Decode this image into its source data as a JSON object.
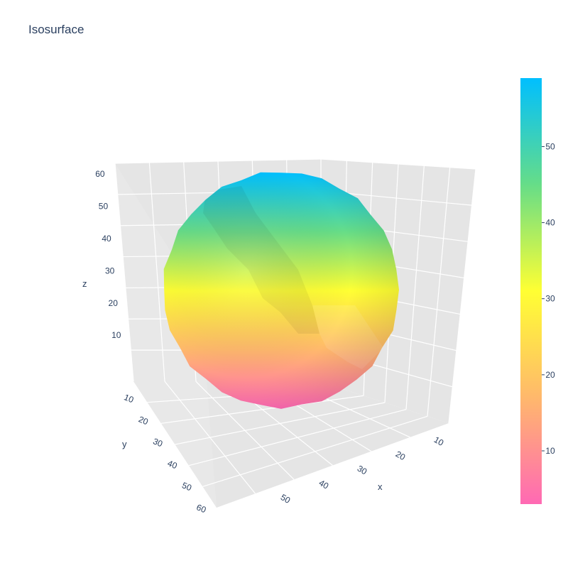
{
  "chart_data": {
    "type": "isosurface",
    "title": "Isosurface",
    "axes": {
      "x": {
        "label": "x",
        "ticks": [
          10,
          20,
          30,
          40,
          50
        ]
      },
      "y": {
        "label": "y",
        "ticks": [
          10,
          20,
          30,
          40,
          50,
          60
        ]
      },
      "z": {
        "label": "z",
        "ticks": [
          10,
          20,
          30,
          40,
          50,
          60
        ]
      }
    },
    "surface": {
      "shape": "sphere",
      "value_range": [
        3,
        59
      ]
    },
    "colorbar": {
      "range": [
        3,
        59
      ],
      "ticks": [
        10,
        20,
        30,
        40,
        50
      ],
      "colorscale": [
        [
          0.0,
          "#ff69b4"
        ],
        [
          0.25,
          "#ffb86c"
        ],
        [
          0.5,
          "#ffff33"
        ],
        [
          0.75,
          "#66dd88"
        ],
        [
          1.0,
          "#00bfff"
        ]
      ]
    },
    "scene": {
      "background": "#e5e5e5",
      "grid_color": "#ffffff"
    }
  }
}
